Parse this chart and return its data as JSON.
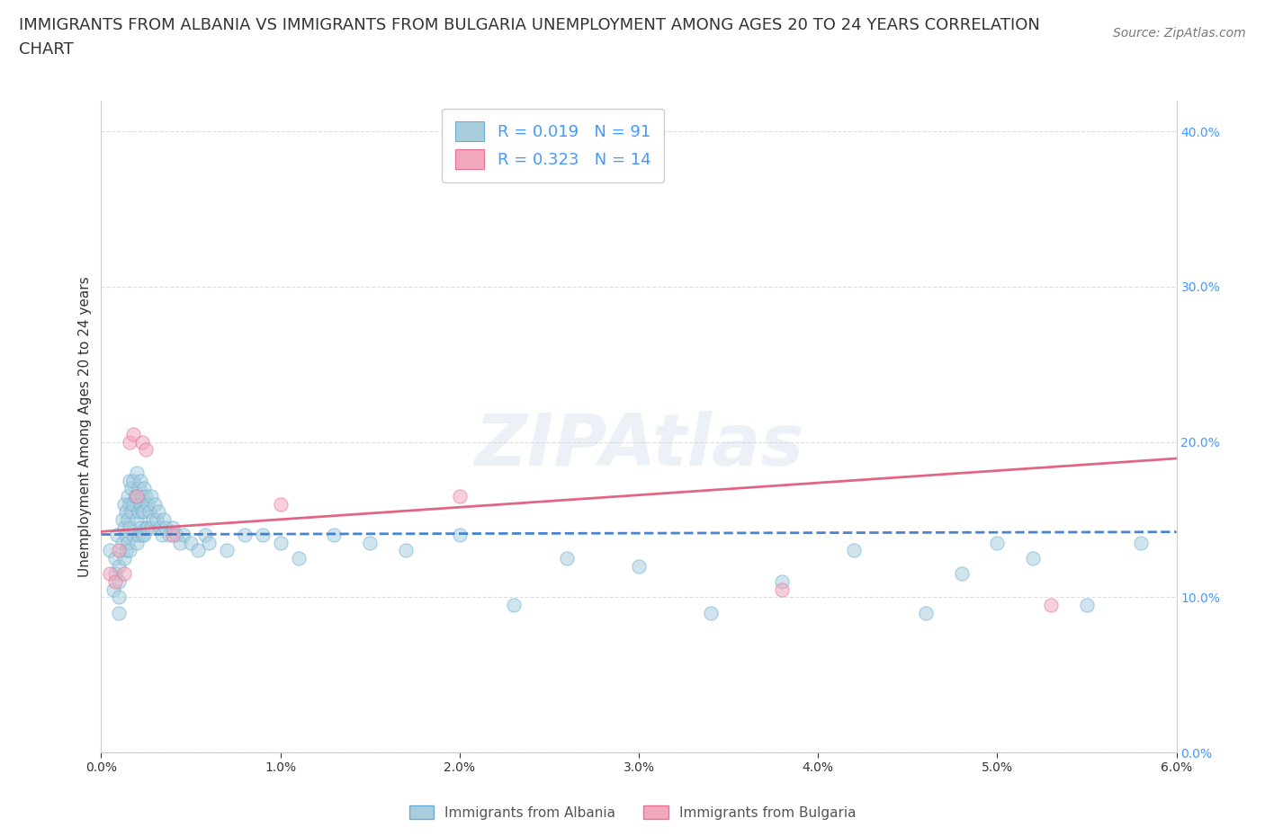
{
  "title_line1": "IMMIGRANTS FROM ALBANIA VS IMMIGRANTS FROM BULGARIA UNEMPLOYMENT AMONG AGES 20 TO 24 YEARS CORRELATION",
  "title_line2": "CHART",
  "source": "Source: ZipAtlas.com",
  "ylabel": "Unemployment Among Ages 20 to 24 years",
  "xlim": [
    0.0,
    0.06
  ],
  "ylim": [
    0.0,
    0.42
  ],
  "xtick_vals": [
    0.0,
    0.01,
    0.02,
    0.03,
    0.04,
    0.05,
    0.06
  ],
  "xticklabels": [
    "0.0%",
    "1.0%",
    "2.0%",
    "3.0%",
    "4.0%",
    "5.0%",
    "6.0%"
  ],
  "ytick_vals": [
    0.0,
    0.1,
    0.2,
    0.3,
    0.4
  ],
  "yticklabels": [
    "0.0%",
    "10.0%",
    "20.0%",
    "30.0%",
    "40.0%"
  ],
  "albania_color": "#A8CEDE",
  "bulgaria_color": "#F2A8BC",
  "albania_edge_color": "#6aaed6",
  "bulgaria_edge_color": "#e87090",
  "albania_line_color": "#3377CC",
  "bulgaria_line_color": "#DD5577",
  "scatter_alpha": 0.55,
  "scatter_size": 120,
  "R_albania": 0.019,
  "N_albania": 91,
  "R_bulgaria": 0.323,
  "N_bulgaria": 14,
  "legend_label_albania": "Immigrants from Albania",
  "legend_label_bulgaria": "Immigrants from Bulgaria",
  "watermark": "ZIPAtlas",
  "watermark_color": "#C8D8E8",
  "watermark_alpha": 0.35,
  "background_color": "#FFFFFF",
  "grid_color": "#DDDDDD",
  "title_fontsize": 13,
  "axis_label_fontsize": 11,
  "tick_fontsize": 10,
  "legend_fontsize": 13,
  "source_fontsize": 10,
  "tick_color": "#4499FF",
  "albania_x": [
    0.0005,
    0.0007,
    0.0008,
    0.0008,
    0.0009,
    0.001,
    0.001,
    0.001,
    0.001,
    0.0012,
    0.0012,
    0.0013,
    0.0013,
    0.0013,
    0.0014,
    0.0014,
    0.0014,
    0.0015,
    0.0015,
    0.0015,
    0.0016,
    0.0016,
    0.0016,
    0.0016,
    0.0017,
    0.0017,
    0.0018,
    0.0018,
    0.0018,
    0.0019,
    0.002,
    0.002,
    0.002,
    0.002,
    0.0021,
    0.0021,
    0.0021,
    0.0022,
    0.0022,
    0.0022,
    0.0023,
    0.0023,
    0.0023,
    0.0024,
    0.0024,
    0.0024,
    0.0025,
    0.0025,
    0.0026,
    0.0026,
    0.0027,
    0.0028,
    0.0028,
    0.0029,
    0.003,
    0.0031,
    0.0032,
    0.0033,
    0.0034,
    0.0035,
    0.0036,
    0.0038,
    0.004,
    0.0042,
    0.0044,
    0.0046,
    0.005,
    0.0054,
    0.0058,
    0.006,
    0.007,
    0.008,
    0.009,
    0.01,
    0.011,
    0.013,
    0.015,
    0.017,
    0.02,
    0.023,
    0.026,
    0.03,
    0.034,
    0.038,
    0.042,
    0.046,
    0.048,
    0.05,
    0.052,
    0.055,
    0.058
  ],
  "albania_y": [
    0.13,
    0.105,
    0.125,
    0.115,
    0.14,
    0.12,
    0.11,
    0.1,
    0.09,
    0.135,
    0.15,
    0.16,
    0.145,
    0.125,
    0.155,
    0.14,
    0.13,
    0.165,
    0.15,
    0.135,
    0.175,
    0.16,
    0.145,
    0.13,
    0.17,
    0.155,
    0.175,
    0.16,
    0.14,
    0.165,
    0.18,
    0.165,
    0.15,
    0.135,
    0.17,
    0.155,
    0.14,
    0.175,
    0.16,
    0.145,
    0.165,
    0.155,
    0.14,
    0.17,
    0.155,
    0.14,
    0.165,
    0.145,
    0.16,
    0.145,
    0.155,
    0.165,
    0.145,
    0.15,
    0.16,
    0.15,
    0.155,
    0.145,
    0.14,
    0.15,
    0.145,
    0.14,
    0.145,
    0.14,
    0.135,
    0.14,
    0.135,
    0.13,
    0.14,
    0.135,
    0.13,
    0.14,
    0.14,
    0.135,
    0.125,
    0.14,
    0.135,
    0.13,
    0.14,
    0.095,
    0.125,
    0.12,
    0.09,
    0.11,
    0.13,
    0.09,
    0.115,
    0.135,
    0.125,
    0.095,
    0.135
  ],
  "bulgaria_x": [
    0.0005,
    0.0008,
    0.001,
    0.0013,
    0.0016,
    0.0018,
    0.002,
    0.0023,
    0.0025,
    0.004,
    0.01,
    0.02,
    0.038,
    0.053
  ],
  "bulgaria_y": [
    0.115,
    0.11,
    0.13,
    0.115,
    0.2,
    0.205,
    0.165,
    0.2,
    0.195,
    0.14,
    0.16,
    0.165,
    0.105,
    0.095
  ]
}
